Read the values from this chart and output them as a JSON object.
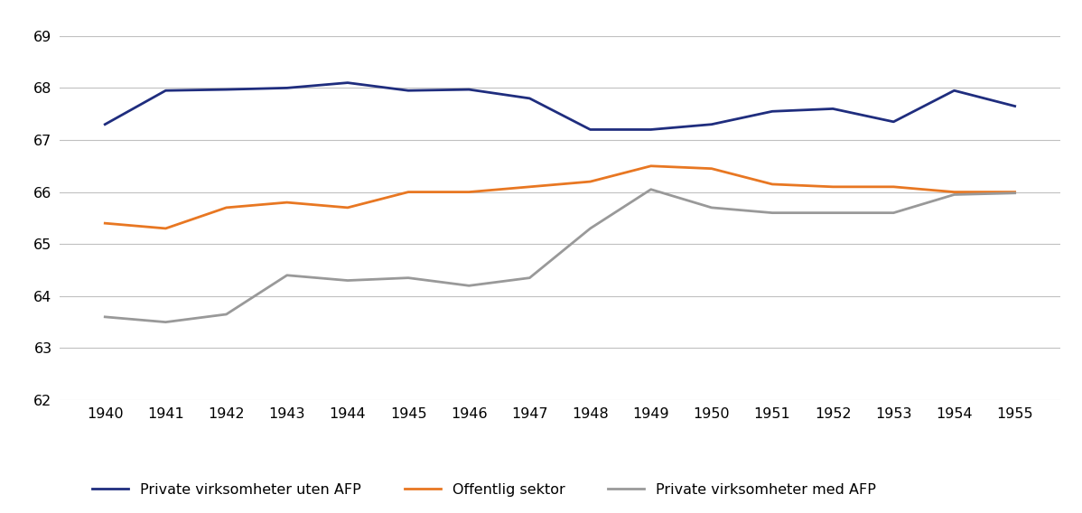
{
  "years": [
    1940,
    1941,
    1942,
    1943,
    1944,
    1945,
    1946,
    1947,
    1948,
    1949,
    1950,
    1951,
    1952,
    1953,
    1954,
    1955
  ],
  "private_uten_afp": [
    67.3,
    67.95,
    67.97,
    68.0,
    68.1,
    67.95,
    67.97,
    67.8,
    67.2,
    67.2,
    67.3,
    67.55,
    67.6,
    67.35,
    67.95,
    67.65
  ],
  "offentlig_sektor": [
    65.4,
    65.3,
    65.7,
    65.8,
    65.7,
    66.0,
    66.0,
    66.1,
    66.2,
    66.5,
    66.45,
    66.15,
    66.1,
    66.1,
    66.0,
    66.0
  ],
  "private_med_afp": [
    63.6,
    63.5,
    63.65,
    64.4,
    64.3,
    64.35,
    64.2,
    64.35,
    65.3,
    66.05,
    65.7,
    65.6,
    65.6,
    65.6,
    65.95,
    65.98
  ],
  "color_private_uten": "#1f2d7e",
  "color_offentlig": "#e87722",
  "color_private_med": "#999999",
  "ylim": [
    62,
    69
  ],
  "yticks": [
    62,
    63,
    64,
    65,
    66,
    67,
    68,
    69
  ],
  "legend_labels": [
    "Private virksomheter uten AFP",
    "Offentlig sektor",
    "Private virksomheter med AFP"
  ],
  "background_color": "#ffffff",
  "linewidth": 2.0,
  "grid_color": "#c0c0c0",
  "tick_fontsize": 11.5
}
